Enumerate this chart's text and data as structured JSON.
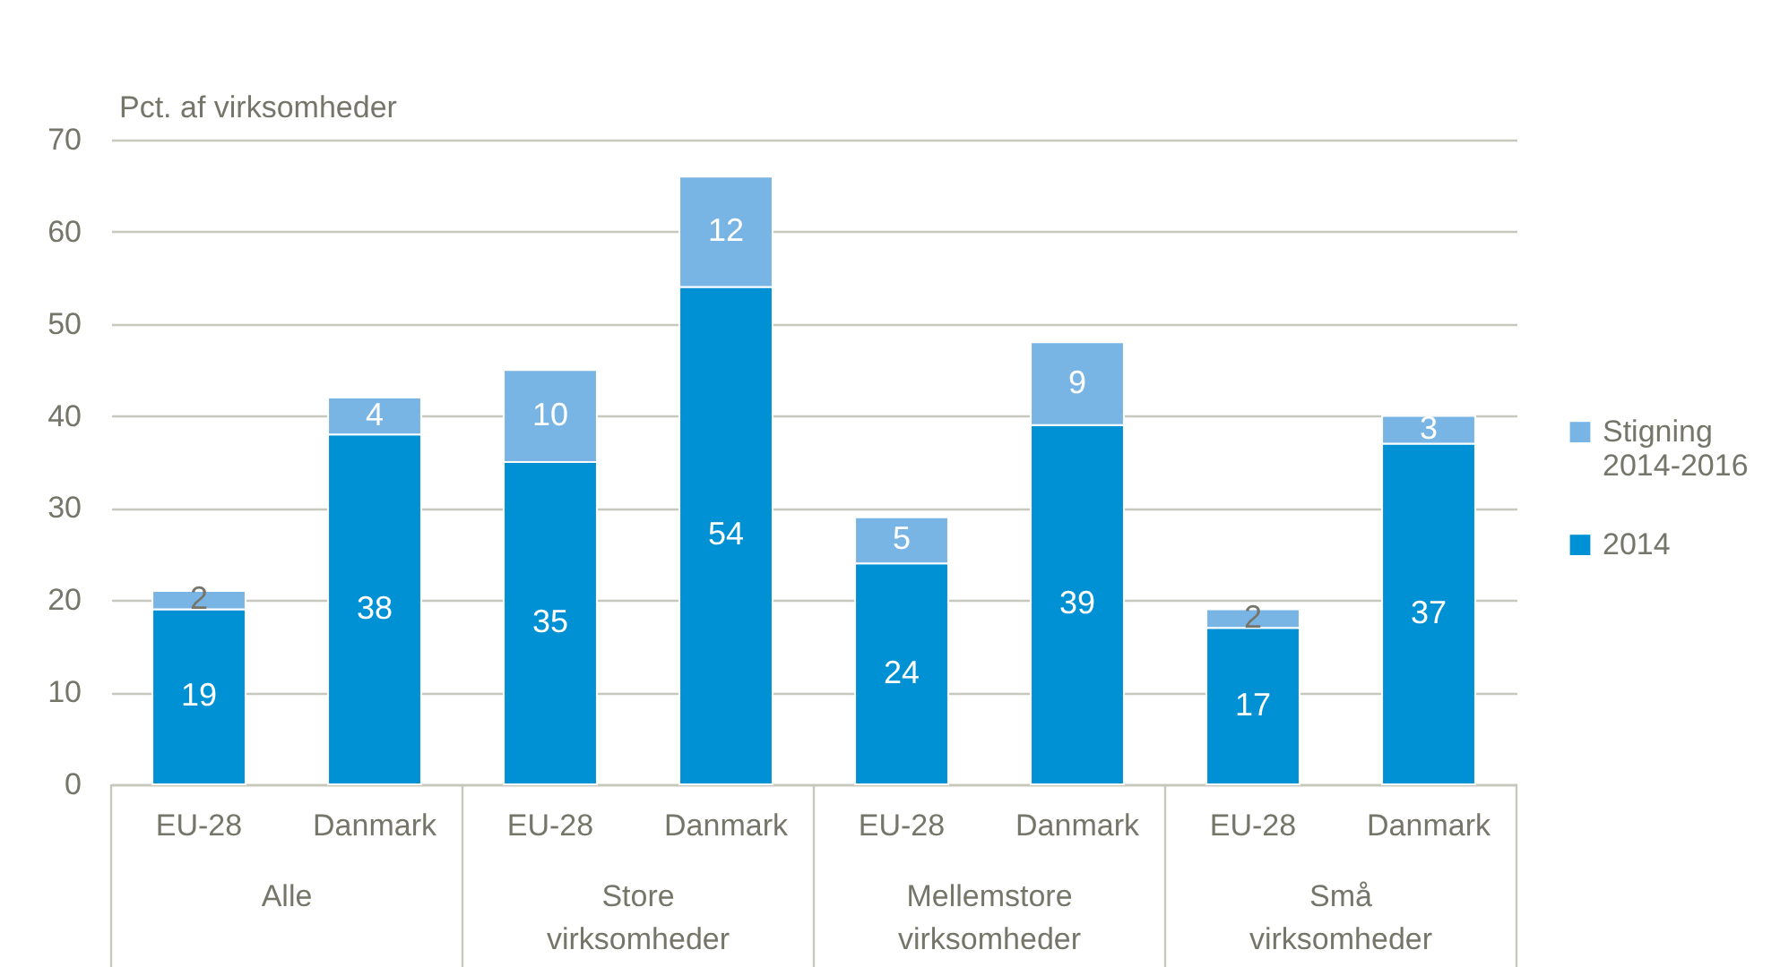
{
  "chart_data": {
    "type": "bar",
    "ylabel": "Pct. af virksomheder",
    "categories": [
      "EU-28",
      "Danmark",
      "EU-28",
      "Danmark",
      "EU-28",
      "Danmark",
      "EU-28",
      "Danmark"
    ],
    "series": [
      {
        "name": "2014",
        "color": "#0091d4",
        "values": [
          19,
          38,
          35,
          54,
          24,
          39,
          17,
          37
        ]
      },
      {
        "name": "Stigning 2014-2016",
        "color": "#79b5e4",
        "values": [
          2,
          4,
          10,
          12,
          5,
          9,
          2,
          3
        ]
      }
    ],
    "stacked": true,
    "ylim": [
      0,
      70
    ],
    "yticks": [
      0,
      10,
      20,
      30,
      40,
      50,
      60,
      70
    ],
    "grid": "y",
    "legend": "right",
    "data_labels": true,
    "annotations": [
      "Alle",
      "Store virksomheder",
      "Mellemstore virksomheder",
      "Små virksomheder"
    ]
  }
}
